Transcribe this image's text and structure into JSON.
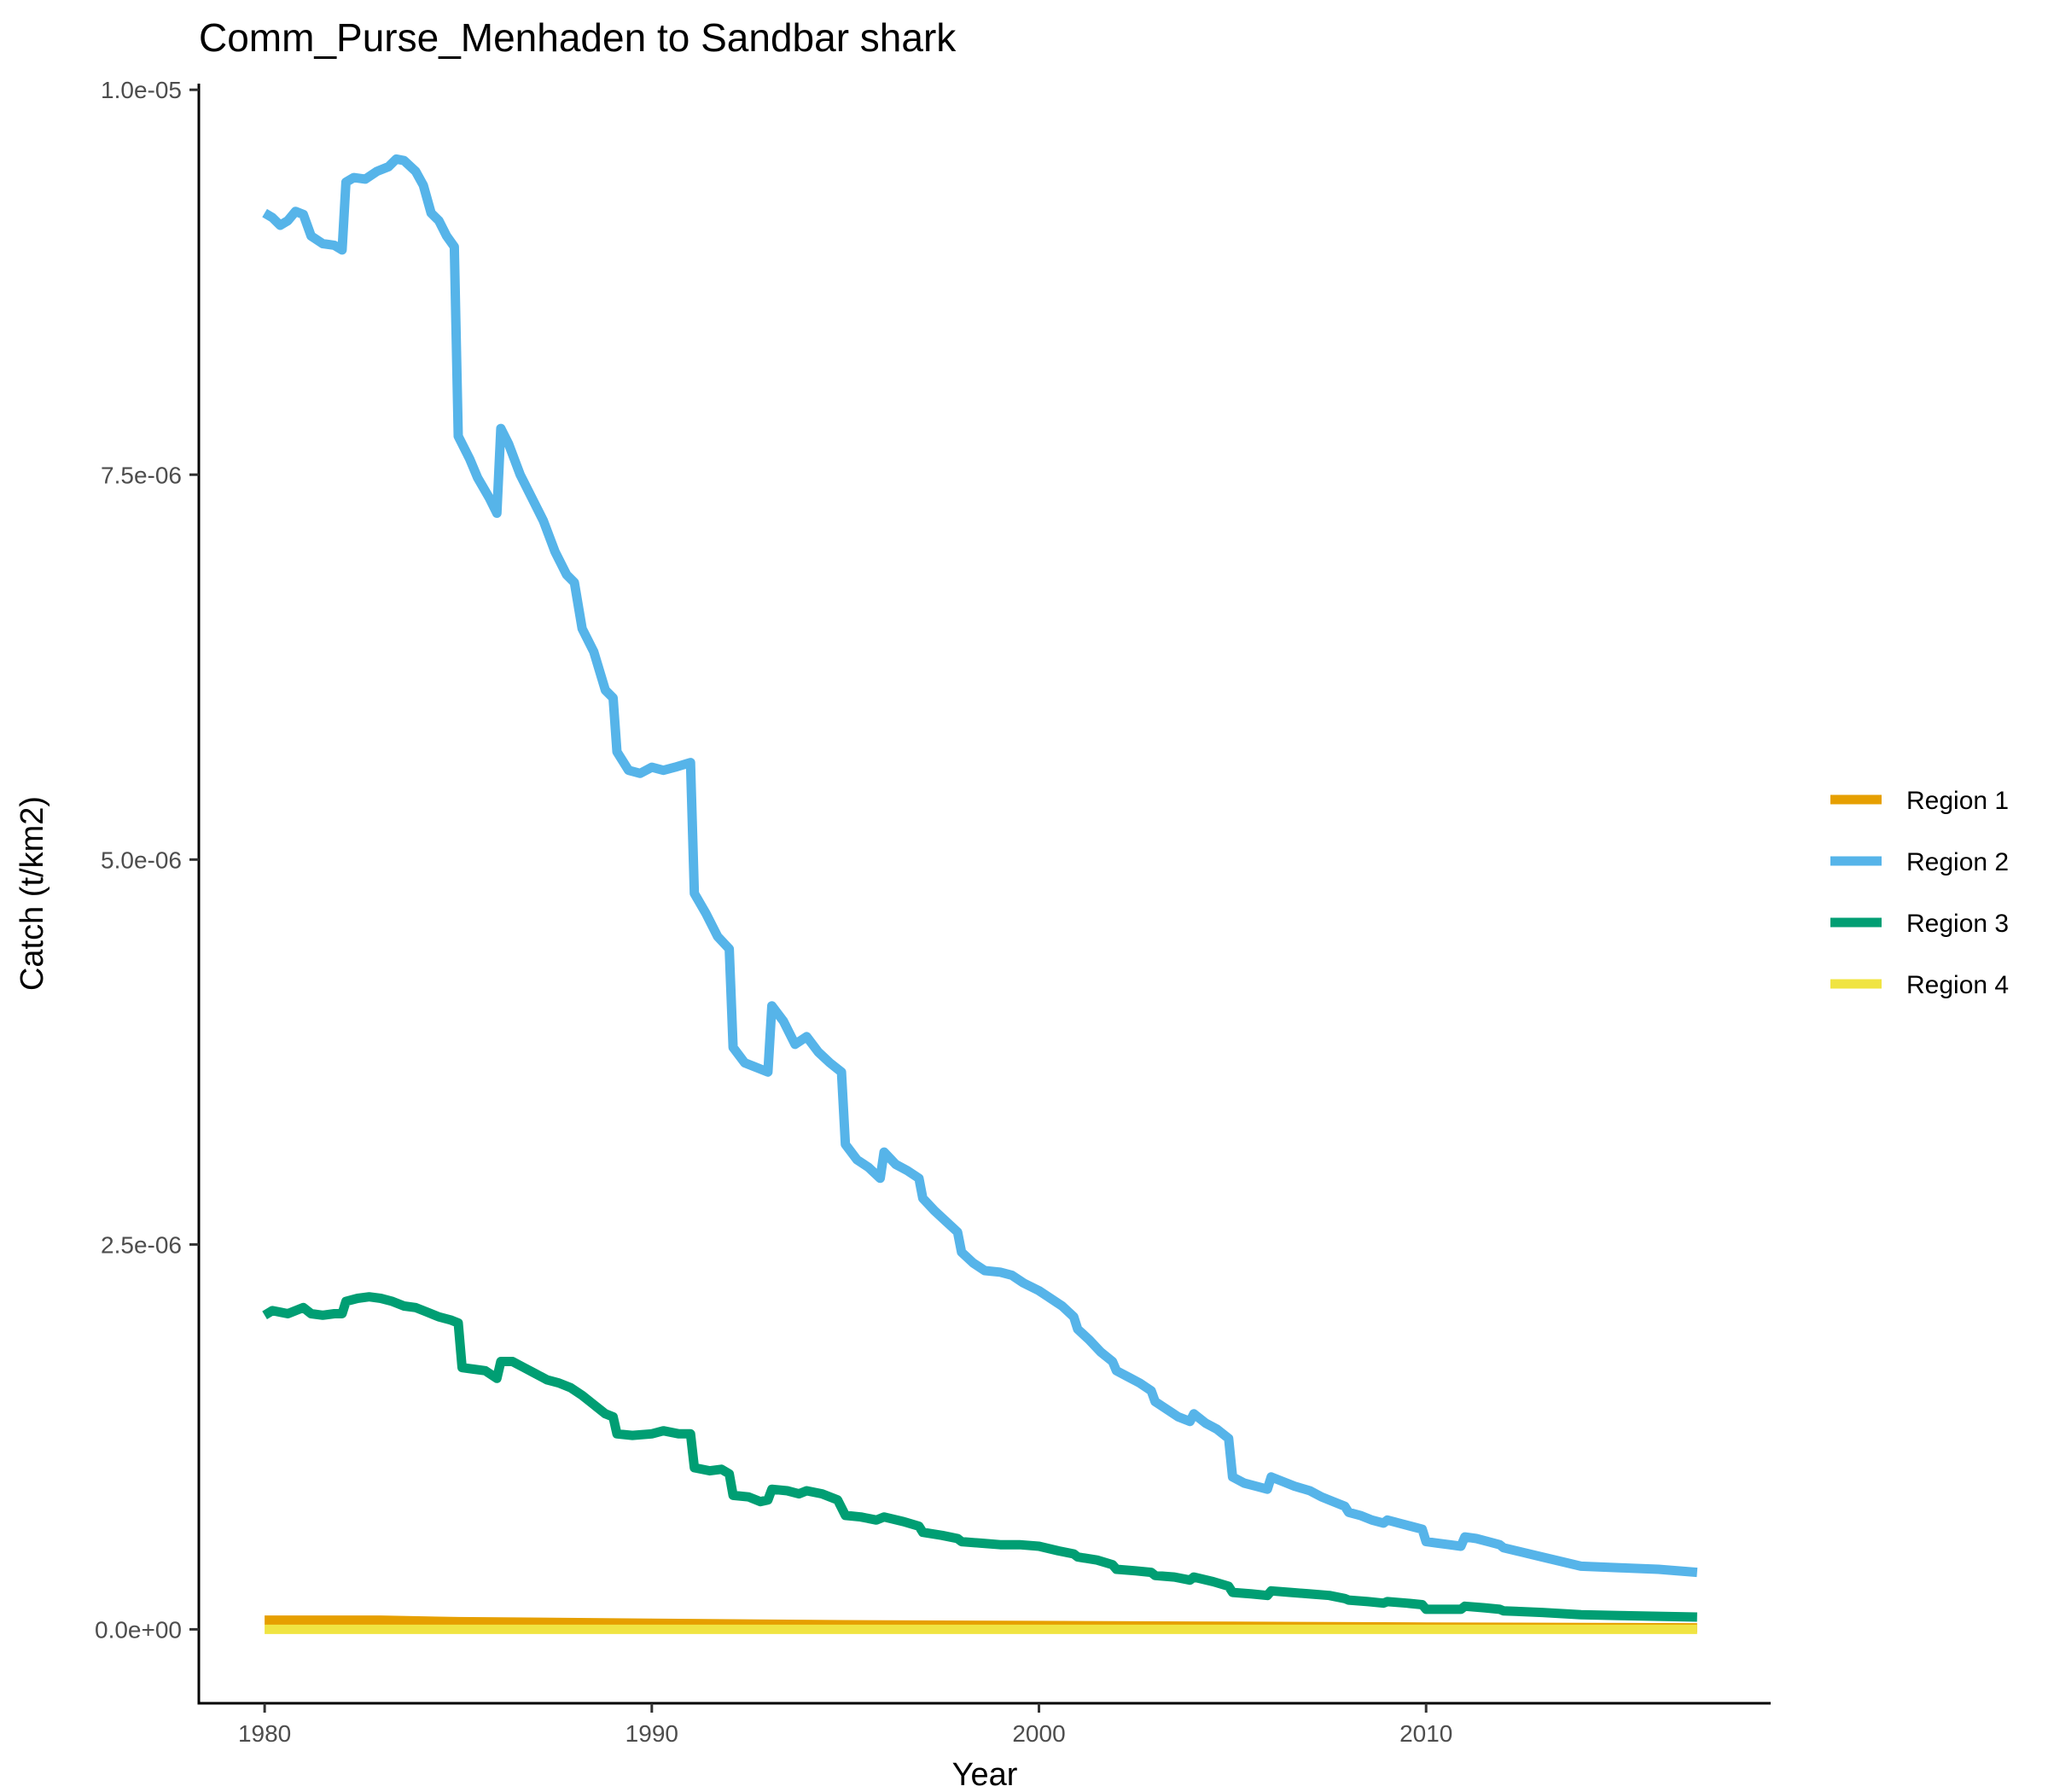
{
  "chart_data": {
    "type": "line",
    "title": "Comm_Purse_Menhaden to Sandbar shark",
    "xlabel": "Year",
    "ylabel": "Catch (t/km2)",
    "xlim": [
      1978.3,
      2018.9
    ],
    "ylim": [
      -4.8e-07,
      1.004e-05
    ],
    "x_ticks": [
      1980,
      1990,
      2000,
      2010
    ],
    "x_tick_labels": [
      "1980",
      "1990",
      "2000",
      "2010"
    ],
    "y_ticks": [
      0,
      2.5e-06,
      5e-06,
      7.5e-06,
      1e-05
    ],
    "y_tick_labels": [
      "0.0e+00",
      "2.5e-06",
      "5.0e-06",
      "7.5e-06",
      "1.0e-05"
    ],
    "grid": false,
    "legend_position": "right",
    "series": [
      {
        "name": "Region 1",
        "color": "#E69F00",
        "points": [
          [
            1980.0,
            6e-08
          ],
          [
            1983.0,
            6e-08
          ],
          [
            1985.0,
            5e-08
          ],
          [
            1990.0,
            4e-08
          ],
          [
            1995.0,
            3e-08
          ],
          [
            2000.0,
            2.5e-08
          ],
          [
            2005.0,
            2e-08
          ],
          [
            2010.0,
            1.5e-08
          ],
          [
            2017.0,
            1e-08
          ]
        ]
      },
      {
        "name": "Region 2",
        "color": "#56B4E9",
        "points": [
          [
            1980.0,
            9.2e-06
          ],
          [
            1980.2,
            9.17e-06
          ],
          [
            1980.4,
            9.12e-06
          ],
          [
            1980.6,
            9.15e-06
          ],
          [
            1980.8,
            9.21e-06
          ],
          [
            1981.0,
            9.19e-06
          ],
          [
            1981.2,
            9.05e-06
          ],
          [
            1981.5,
            9e-06
          ],
          [
            1981.8,
            8.99e-06
          ],
          [
            1982.0,
            8.96e-06
          ],
          [
            1982.1,
            9.4e-06
          ],
          [
            1982.3,
            9.43e-06
          ],
          [
            1982.6,
            9.42e-06
          ],
          [
            1982.9,
            9.47e-06
          ],
          [
            1983.2,
            9.5e-06
          ],
          [
            1983.4,
            9.55e-06
          ],
          [
            1983.6,
            9.54e-06
          ],
          [
            1983.9,
            9.47e-06
          ],
          [
            1984.1,
            9.38e-06
          ],
          [
            1984.3,
            9.2e-06
          ],
          [
            1984.5,
            9.15e-06
          ],
          [
            1984.7,
            9.05e-06
          ],
          [
            1984.9,
            8.98e-06
          ],
          [
            1985.0,
            7.75e-06
          ],
          [
            1985.3,
            7.6e-06
          ],
          [
            1985.5,
            7.48e-06
          ],
          [
            1985.8,
            7.35e-06
          ],
          [
            1986.0,
            7.25e-06
          ],
          [
            1986.1,
            7.8e-06
          ],
          [
            1986.3,
            7.7e-06
          ],
          [
            1986.6,
            7.5e-06
          ],
          [
            1986.9,
            7.35e-06
          ],
          [
            1987.2,
            7.2e-06
          ],
          [
            1987.5,
            7e-06
          ],
          [
            1987.8,
            6.85e-06
          ],
          [
            1988.0,
            6.8e-06
          ],
          [
            1988.2,
            6.5e-06
          ],
          [
            1988.5,
            6.35e-06
          ],
          [
            1988.8,
            6.1e-06
          ],
          [
            1989.0,
            6.05e-06
          ],
          [
            1989.1,
            5.7e-06
          ],
          [
            1989.4,
            5.58e-06
          ],
          [
            1989.7,
            5.56e-06
          ],
          [
            1990.0,
            5.6e-06
          ],
          [
            1990.3,
            5.58e-06
          ],
          [
            1990.6,
            5.6e-06
          ],
          [
            1991.0,
            5.63e-06
          ],
          [
            1991.1,
            4.78e-06
          ],
          [
            1991.4,
            4.65e-06
          ],
          [
            1991.7,
            4.5e-06
          ],
          [
            1992.0,
            4.42e-06
          ],
          [
            1992.1,
            3.78e-06
          ],
          [
            1992.4,
            3.68e-06
          ],
          [
            1992.7,
            3.65e-06
          ],
          [
            1993.0,
            3.62e-06
          ],
          [
            1993.1,
            4.05e-06
          ],
          [
            1993.4,
            3.95e-06
          ],
          [
            1993.7,
            3.8e-06
          ],
          [
            1994.0,
            3.85e-06
          ],
          [
            1994.3,
            3.75e-06
          ],
          [
            1994.6,
            3.68e-06
          ],
          [
            1994.9,
            3.62e-06
          ],
          [
            1995.0,
            3.15e-06
          ],
          [
            1995.3,
            3.05e-06
          ],
          [
            1995.6,
            3e-06
          ],
          [
            1995.9,
            2.93e-06
          ],
          [
            1996.0,
            3.1e-06
          ],
          [
            1996.3,
            3.02e-06
          ],
          [
            1996.6,
            2.98e-06
          ],
          [
            1996.9,
            2.93e-06
          ],
          [
            1997.0,
            2.8e-06
          ],
          [
            1997.3,
            2.72e-06
          ],
          [
            1997.6,
            2.65e-06
          ],
          [
            1997.9,
            2.58e-06
          ],
          [
            1998.0,
            2.45e-06
          ],
          [
            1998.3,
            2.38e-06
          ],
          [
            1998.6,
            2.33e-06
          ],
          [
            1999.0,
            2.32e-06
          ],
          [
            1999.3,
            2.3e-06
          ],
          [
            1999.6,
            2.25e-06
          ],
          [
            2000.0,
            2.2e-06
          ],
          [
            2000.3,
            2.15e-06
          ],
          [
            2000.6,
            2.1e-06
          ],
          [
            2000.9,
            2.03e-06
          ],
          [
            2001.0,
            1.95e-06
          ],
          [
            2001.3,
            1.88e-06
          ],
          [
            2001.6,
            1.8e-06
          ],
          [
            2001.9,
            1.74e-06
          ],
          [
            2002.0,
            1.68e-06
          ],
          [
            2002.3,
            1.64e-06
          ],
          [
            2002.6,
            1.6e-06
          ],
          [
            2002.9,
            1.55e-06
          ],
          [
            2003.0,
            1.48e-06
          ],
          [
            2003.3,
            1.43e-06
          ],
          [
            2003.6,
            1.38e-06
          ],
          [
            2003.9,
            1.35e-06
          ],
          [
            2004.0,
            1.4e-06
          ],
          [
            2004.3,
            1.34e-06
          ],
          [
            2004.6,
            1.3e-06
          ],
          [
            2004.9,
            1.24e-06
          ],
          [
            2005.0,
            9.9e-07
          ],
          [
            2005.3,
            9.5e-07
          ],
          [
            2005.6,
            9.3e-07
          ],
          [
            2005.9,
            9.1e-07
          ],
          [
            2006.0,
            9.9e-07
          ],
          [
            2006.3,
            9.6e-07
          ],
          [
            2006.6,
            9.3e-07
          ],
          [
            2007.0,
            9e-07
          ],
          [
            2007.3,
            8.6e-07
          ],
          [
            2007.6,
            8.3e-07
          ],
          [
            2007.9,
            8e-07
          ],
          [
            2008.0,
            7.6e-07
          ],
          [
            2008.3,
            7.4e-07
          ],
          [
            2008.6,
            7.1e-07
          ],
          [
            2008.9,
            6.9e-07
          ],
          [
            2009.0,
            7.1e-07
          ],
          [
            2009.3,
            6.9e-07
          ],
          [
            2009.6,
            6.7e-07
          ],
          [
            2009.9,
            6.5e-07
          ],
          [
            2010.0,
            5.7e-07
          ],
          [
            2010.3,
            5.6e-07
          ],
          [
            2010.6,
            5.5e-07
          ],
          [
            2010.9,
            5.4e-07
          ],
          [
            2011.0,
            6e-07
          ],
          [
            2011.3,
            5.9e-07
          ],
          [
            2011.6,
            5.7e-07
          ],
          [
            2011.9,
            5.5e-07
          ],
          [
            2012.0,
            5.3e-07
          ],
          [
            2012.5,
            5e-07
          ],
          [
            2013.0,
            4.7e-07
          ],
          [
            2013.5,
            4.4e-07
          ],
          [
            2014.0,
            4.1e-07
          ],
          [
            2015.0,
            4e-07
          ],
          [
            2016.0,
            3.9e-07
          ],
          [
            2017.0,
            3.7e-07
          ]
        ]
      },
      {
        "name": "Region 3",
        "color": "#009E73",
        "points": [
          [
            1980.0,
            2.04e-06
          ],
          [
            1980.2,
            2.07e-06
          ],
          [
            1980.4,
            2.06e-06
          ],
          [
            1980.6,
            2.05e-06
          ],
          [
            1980.8,
            2.07e-06
          ],
          [
            1981.0,
            2.09e-06
          ],
          [
            1981.2,
            2.05e-06
          ],
          [
            1981.5,
            2.04e-06
          ],
          [
            1981.8,
            2.05e-06
          ],
          [
            1982.0,
            2.05e-06
          ],
          [
            1982.1,
            2.13e-06
          ],
          [
            1982.4,
            2.15e-06
          ],
          [
            1982.7,
            2.16e-06
          ],
          [
            1983.0,
            2.15e-06
          ],
          [
            1983.3,
            2.13e-06
          ],
          [
            1983.6,
            2.1e-06
          ],
          [
            1983.9,
            2.09e-06
          ],
          [
            1984.2,
            2.06e-06
          ],
          [
            1984.5,
            2.03e-06
          ],
          [
            1984.8,
            2.01e-06
          ],
          [
            1985.0,
            1.99e-06
          ],
          [
            1985.1,
            1.7e-06
          ],
          [
            1985.4,
            1.69e-06
          ],
          [
            1985.7,
            1.68e-06
          ],
          [
            1986.0,
            1.63e-06
          ],
          [
            1986.1,
            1.74e-06
          ],
          [
            1986.4,
            1.74e-06
          ],
          [
            1986.7,
            1.7e-06
          ],
          [
            1987.0,
            1.66e-06
          ],
          [
            1987.3,
            1.62e-06
          ],
          [
            1987.6,
            1.6e-06
          ],
          [
            1987.9,
            1.57e-06
          ],
          [
            1988.2,
            1.52e-06
          ],
          [
            1988.5,
            1.46e-06
          ],
          [
            1988.8,
            1.4e-06
          ],
          [
            1989.0,
            1.38e-06
          ],
          [
            1989.1,
            1.27e-06
          ],
          [
            1989.5,
            1.26e-06
          ],
          [
            1990.0,
            1.27e-06
          ],
          [
            1990.3,
            1.29e-06
          ],
          [
            1990.7,
            1.27e-06
          ],
          [
            1991.0,
            1.27e-06
          ],
          [
            1991.1,
            1.05e-06
          ],
          [
            1991.5,
            1.03e-06
          ],
          [
            1991.8,
            1.04e-06
          ],
          [
            1992.0,
            1.01e-06
          ],
          [
            1992.1,
            8.7e-07
          ],
          [
            1992.5,
            8.6e-07
          ],
          [
            1992.8,
            8.3e-07
          ],
          [
            1993.0,
            8.4e-07
          ],
          [
            1993.1,
            9.1e-07
          ],
          [
            1993.5,
            9e-07
          ],
          [
            1993.8,
            8.8e-07
          ],
          [
            1994.0,
            9e-07
          ],
          [
            1994.4,
            8.8e-07
          ],
          [
            1994.8,
            8.4e-07
          ],
          [
            1995.0,
            7.4e-07
          ],
          [
            1995.4,
            7.3e-07
          ],
          [
            1995.8,
            7.1e-07
          ],
          [
            1996.0,
            7.3e-07
          ],
          [
            1996.5,
            7e-07
          ],
          [
            1996.9,
            6.7e-07
          ],
          [
            1997.0,
            6.3e-07
          ],
          [
            1997.5,
            6.1e-07
          ],
          [
            1997.9,
            5.9e-07
          ],
          [
            1998.0,
            5.7e-07
          ],
          [
            1998.5,
            5.6e-07
          ],
          [
            1999.0,
            5.5e-07
          ],
          [
            1999.5,
            5.5e-07
          ],
          [
            2000.0,
            5.4e-07
          ],
          [
            2000.5,
            5.1e-07
          ],
          [
            2000.9,
            4.9e-07
          ],
          [
            2001.0,
            4.7e-07
          ],
          [
            2001.5,
            4.5e-07
          ],
          [
            2001.9,
            4.2e-07
          ],
          [
            2002.0,
            3.9e-07
          ],
          [
            2002.5,
            3.8e-07
          ],
          [
            2002.9,
            3.7e-07
          ],
          [
            2003.0,
            3.5e-07
          ],
          [
            2003.5,
            3.4e-07
          ],
          [
            2003.9,
            3.2e-07
          ],
          [
            2004.0,
            3.4e-07
          ],
          [
            2004.5,
            3.1e-07
          ],
          [
            2004.9,
            2.8e-07
          ],
          [
            2005.0,
            2.4e-07
          ],
          [
            2005.5,
            2.3e-07
          ],
          [
            2005.9,
            2.2e-07
          ],
          [
            2006.0,
            2.5e-07
          ],
          [
            2006.5,
            2.4e-07
          ],
          [
            2007.0,
            2.3e-07
          ],
          [
            2007.5,
            2.2e-07
          ],
          [
            2007.9,
            2e-07
          ],
          [
            2008.0,
            1.9e-07
          ],
          [
            2008.5,
            1.8e-07
          ],
          [
            2008.9,
            1.7e-07
          ],
          [
            2009.0,
            1.8e-07
          ],
          [
            2009.5,
            1.7e-07
          ],
          [
            2009.9,
            1.6e-07
          ],
          [
            2010.0,
            1.3e-07
          ],
          [
            2010.5,
            1.3e-07
          ],
          [
            2010.9,
            1.3e-07
          ],
          [
            2011.0,
            1.5e-07
          ],
          [
            2011.5,
            1.4e-07
          ],
          [
            2011.9,
            1.3e-07
          ],
          [
            2012.0,
            1.2e-07
          ],
          [
            2013.0,
            1.1e-07
          ],
          [
            2014.0,
            9.5e-08
          ],
          [
            2015.0,
            9e-08
          ],
          [
            2016.0,
            8.5e-08
          ],
          [
            2017.0,
            8e-08
          ]
        ]
      },
      {
        "name": "Region 4",
        "color": "#F0E442",
        "points": [
          [
            1980.0,
            0.0
          ],
          [
            1990.0,
            0.0
          ],
          [
            2000.0,
            0.0
          ],
          [
            2010.0,
            0.0
          ],
          [
            2017.0,
            0.0
          ]
        ]
      }
    ]
  }
}
